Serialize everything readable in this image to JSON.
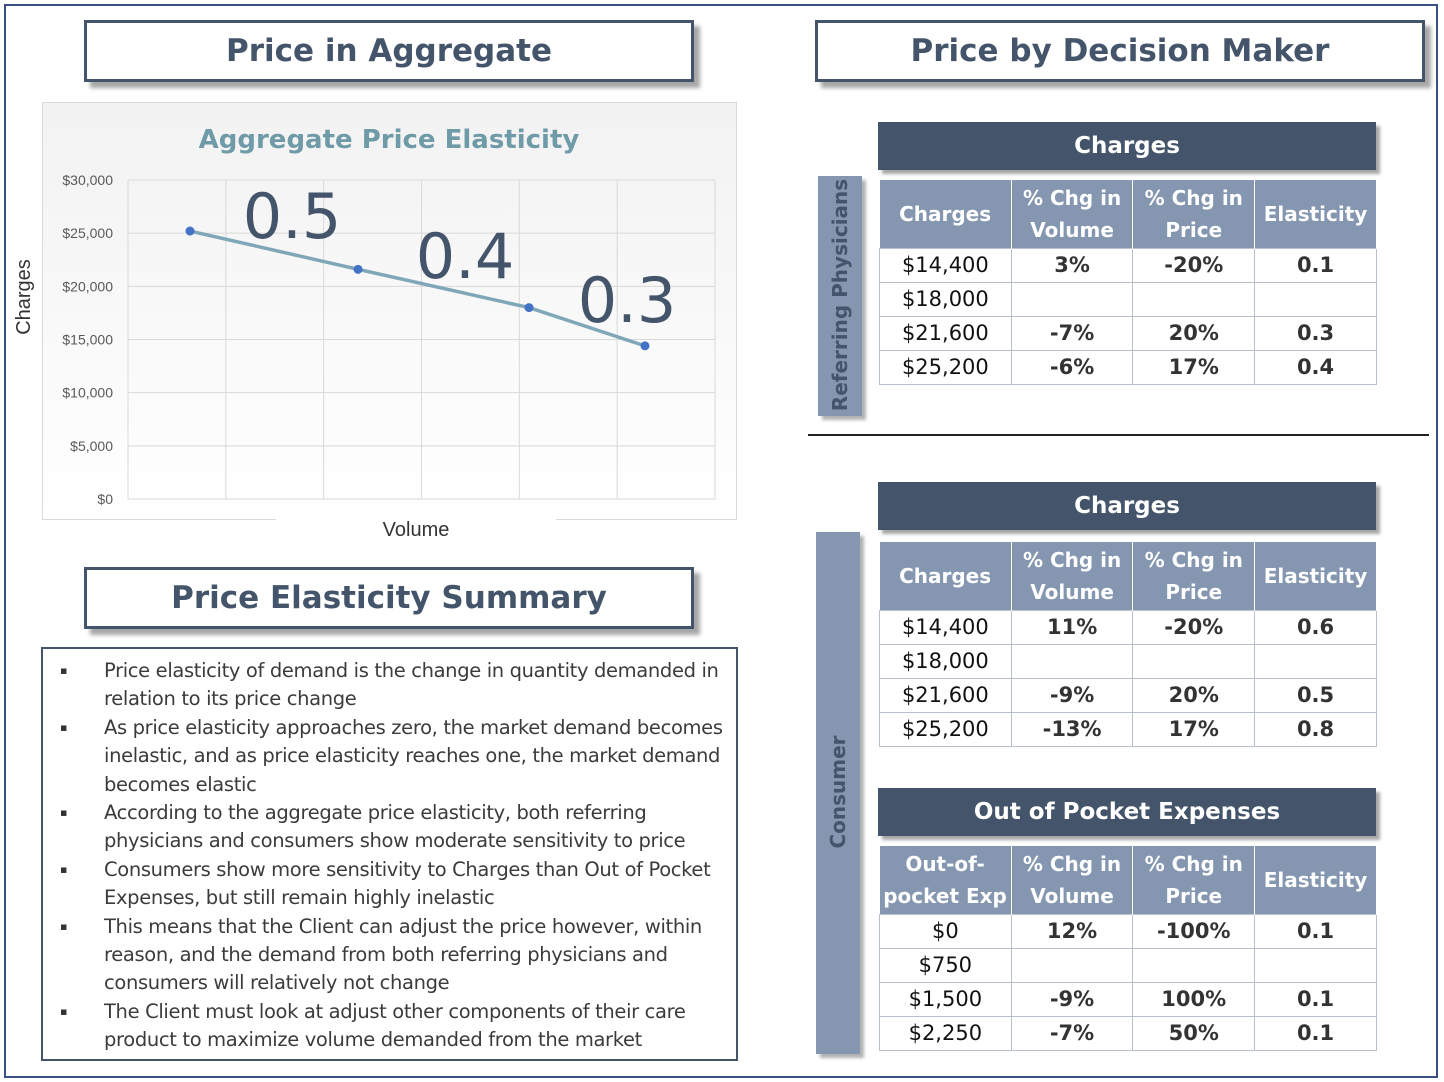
{
  "left": {
    "title": "Price in Aggregate",
    "summary_title": "Price Elasticity Summary",
    "summary_items": [
      "Price elasticity of demand is the change in quantity demanded in relation to its price change",
      "As price elasticity approaches zero, the market demand becomes inelastic, and as price elasticity reaches one, the market demand becomes elastic",
      "According to the aggregate price elasticity, both referring physicians and consumers show moderate sensitivity to price",
      "Consumers show more sensitivity to Charges than Out of Pocket Expenses, but still remain highly inelastic",
      "This means that the Client can adjust the price however, within reason, and the demand from both referring physicians and consumers will relatively not change",
      "The Client must look at adjust other components of their care product to maximize volume demanded from the market"
    ],
    "bullet_glyph": "▪"
  },
  "chart_data": {
    "type": "line",
    "title": "Aggregate Price Elasticity",
    "xlabel": "Volume",
    "ylabel": "Charges",
    "ylim": [
      0,
      30000
    ],
    "yticks": [
      "$0",
      "$5,000",
      "$10,000",
      "$15,000",
      "$20,000",
      "$25,000",
      "$30,000"
    ],
    "series": [
      {
        "x": [
          1,
          2,
          3,
          4
        ],
        "values": [
          25200,
          21600,
          18000,
          14400
        ]
      }
    ],
    "annotations": [
      "0.5",
      "0.4",
      "0.3"
    ],
    "grid": "vertical and horizontal",
    "line_color": "#7fa7b8",
    "marker_color": "#4472c4",
    "title_color": "#6f9aa7"
  },
  "right": {
    "title": "Price by Decision Maker",
    "referring": {
      "side_label": "Referring Physicians",
      "table_title": "Charges",
      "columns": [
        "Charges",
        "% Chg in Volume",
        "% Chg in Price",
        "Elasticity"
      ],
      "rows": [
        [
          "$14,400",
          "3%",
          "-20%",
          "0.1"
        ],
        [
          "$18,000",
          "",
          "",
          ""
        ],
        [
          "$21,600",
          "-7%",
          "20%",
          "0.3"
        ],
        [
          "$25,200",
          "-6%",
          "17%",
          "0.4"
        ]
      ]
    },
    "consumer": {
      "side_label": "Consumer",
      "charges_title": "Charges",
      "charges_columns": [
        "Charges",
        "% Chg in Volume",
        "% Chg in Price",
        "Elasticity"
      ],
      "charges_rows": [
        [
          "$14,400",
          "11%",
          "-20%",
          "0.6"
        ],
        [
          "$18,000",
          "",
          "",
          ""
        ],
        [
          "$21,600",
          "-9%",
          "20%",
          "0.5"
        ],
        [
          "$25,200",
          "-13%",
          "17%",
          "0.8"
        ]
      ],
      "oop_title": "Out of Pocket Expenses",
      "oop_columns": [
        "Out-of-pocket Exp",
        "% Chg in Volume",
        "% Chg in Price",
        "Elasticity"
      ],
      "oop_rows": [
        [
          "$0",
          "12%",
          "-100%",
          "0.1"
        ],
        [
          "$750",
          "",
          "",
          ""
        ],
        [
          "$1,500",
          "-9%",
          "100%",
          "0.1"
        ],
        [
          "$2,250",
          "-7%",
          "50%",
          "0.1"
        ]
      ]
    }
  }
}
